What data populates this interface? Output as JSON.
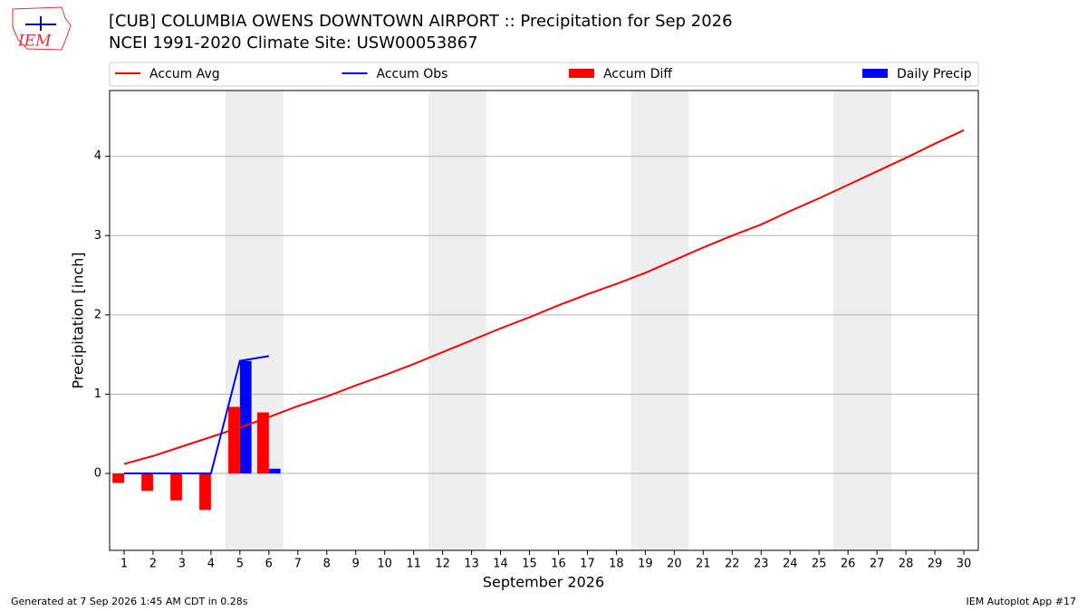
{
  "logo_text": "IEM",
  "footer": {
    "left": "Generated at 7 Sep 2026 1:45 AM CDT in 0.28s",
    "right": "IEM Autoplot App #17"
  },
  "chart_data": {
    "type": "line",
    "title": "[CUB] COLUMBIA OWENS DOWNTOWN AIRPORT :: Precipitation for Sep 2026",
    "subtitle": "NCEI 1991-2020 Climate Site: USW00053867",
    "x_label": "September 2026",
    "y_label": "Precipitation [inch]",
    "x": [
      1,
      2,
      3,
      4,
      5,
      6,
      7,
      8,
      9,
      10,
      11,
      12,
      13,
      14,
      15,
      16,
      17,
      18,
      19,
      20,
      21,
      22,
      23,
      24,
      25,
      26,
      27,
      28,
      29,
      30
    ],
    "xlim": [
      0.5,
      30.5
    ],
    "xticks": [
      1,
      2,
      3,
      4,
      5,
      6,
      7,
      8,
      9,
      10,
      11,
      12,
      13,
      14,
      15,
      16,
      17,
      18,
      19,
      20,
      21,
      22,
      23,
      24,
      25,
      26,
      27,
      28,
      29,
      30
    ],
    "ylim": [
      -0.97,
      4.83
    ],
    "yticks": [
      0,
      1,
      2,
      3,
      4
    ],
    "grid": true,
    "shaded_spans": [
      [
        4.5,
        6.5
      ],
      [
        11.5,
        13.5
      ],
      [
        18.5,
        20.5
      ],
      [
        25.5,
        27.5
      ]
    ],
    "shade_color": "#eeeeee",
    "series": [
      {
        "name": "Accum Avg",
        "type": "line",
        "color": "#ff0000",
        "values": [
          0.12,
          0.22,
          0.34,
          0.46,
          0.58,
          0.71,
          0.85,
          0.97,
          1.11,
          1.24,
          1.38,
          1.53,
          1.68,
          1.83,
          1.97,
          2.12,
          2.26,
          2.39,
          2.53,
          2.69,
          2.85,
          3.0,
          3.14,
          3.31,
          3.47,
          3.64,
          3.81,
          3.98,
          4.16,
          4.33
        ]
      },
      {
        "name": "Accum Obs",
        "type": "line",
        "color": "#0000ff",
        "values": [
          0,
          0,
          0,
          0,
          1.42,
          1.48,
          null,
          null,
          null,
          null,
          null,
          null,
          null,
          null,
          null,
          null,
          null,
          null,
          null,
          null,
          null,
          null,
          null,
          null,
          null,
          null,
          null,
          null,
          null,
          null
        ]
      },
      {
        "name": "Accum Diff",
        "type": "bar",
        "color": "#ff0000",
        "values": [
          -0.12,
          -0.22,
          -0.34,
          -0.46,
          0.84,
          0.77,
          null,
          null,
          null,
          null,
          null,
          null,
          null,
          null,
          null,
          null,
          null,
          null,
          null,
          null,
          null,
          null,
          null,
          null,
          null,
          null,
          null,
          null,
          null,
          null
        ]
      },
      {
        "name": "Daily Precip",
        "type": "bar",
        "color": "#0000ff",
        "values": [
          0,
          0,
          0,
          0,
          1.42,
          0.06,
          null,
          null,
          null,
          null,
          null,
          null,
          null,
          null,
          null,
          null,
          null,
          null,
          null,
          null,
          null,
          null,
          null,
          null,
          null,
          null,
          null,
          null,
          null,
          null
        ]
      }
    ]
  }
}
